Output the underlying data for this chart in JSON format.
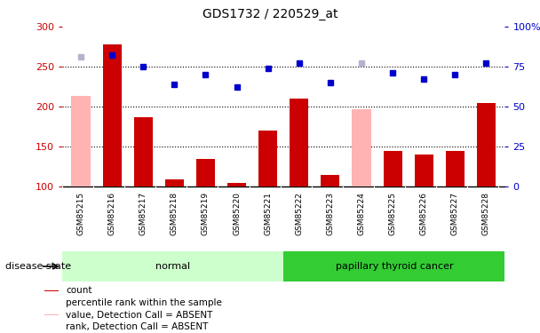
{
  "title": "GDS1732 / 220529_at",
  "samples": [
    "GSM85215",
    "GSM85216",
    "GSM85217",
    "GSM85218",
    "GSM85219",
    "GSM85220",
    "GSM85221",
    "GSM85222",
    "GSM85223",
    "GSM85224",
    "GSM85225",
    "GSM85226",
    "GSM85227",
    "GSM85228"
  ],
  "bar_values": [
    null,
    278,
    187,
    109,
    135,
    105,
    170,
    210,
    115,
    null,
    144,
    140,
    145,
    205
  ],
  "bar_absent_values": [
    213,
    null,
    null,
    null,
    null,
    null,
    null,
    null,
    null,
    197,
    null,
    null,
    null,
    null
  ],
  "dot_values": [
    null,
    265,
    250,
    228,
    240,
    225,
    248,
    255,
    230,
    null,
    242,
    235,
    240,
    255
  ],
  "dot_absent_values": [
    262,
    null,
    null,
    null,
    null,
    null,
    null,
    null,
    null,
    255,
    null,
    null,
    null,
    null
  ],
  "bar_color": "#cc0000",
  "bar_absent_color": "#ffb3b3",
  "dot_color": "#0000cc",
  "dot_absent_color": "#b3b3cc",
  "ylim_left": [
    100,
    300
  ],
  "yticks_left": [
    100,
    150,
    200,
    250,
    300
  ],
  "ytick_labels_right": [
    "0",
    "25",
    "50",
    "75",
    "100%"
  ],
  "normal_color": "#ccffcc",
  "cancer_color": "#33cc33",
  "label_bg_color": "#cccccc",
  "bg_color": "#ffffff",
  "legend_items": [
    {
      "label": "count",
      "color": "#cc0000"
    },
    {
      "label": "percentile rank within the sample",
      "color": "#0000cc"
    },
    {
      "label": "value, Detection Call = ABSENT",
      "color": "#ffb3b3"
    },
    {
      "label": "rank, Detection Call = ABSENT",
      "color": "#b3b3cc"
    }
  ]
}
